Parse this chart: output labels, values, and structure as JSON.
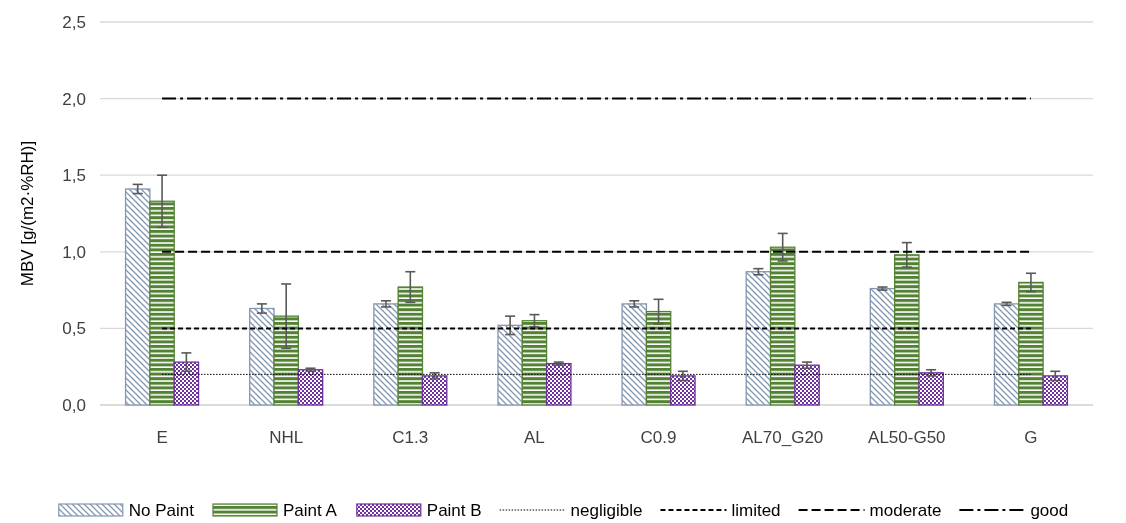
{
  "chart_data": {
    "type": "bar",
    "ylabel": "MBV [g/(m2·%RH)]",
    "categories": [
      "E",
      "NHL",
      "C1.3",
      "AL",
      "C0.9",
      "AL70_G20",
      "AL50-G50",
      "G"
    ],
    "series": [
      {
        "name": "No Paint",
        "color": "#8497b0",
        "values": [
          1.41,
          0.63,
          0.66,
          0.52,
          0.66,
          0.87,
          0.76,
          0.66
        ],
        "errors": [
          0.03,
          0.03,
          0.02,
          0.06,
          0.02,
          0.02,
          0.01,
          0.01
        ]
      },
      {
        "name": "Paint A",
        "color": "#548235",
        "values": [
          1.33,
          0.58,
          0.77,
          0.55,
          0.61,
          1.03,
          0.98,
          0.8
        ],
        "errors": [
          0.17,
          0.21,
          0.1,
          0.04,
          0.08,
          0.09,
          0.08,
          0.06
        ]
      },
      {
        "name": "Paint B",
        "color": "#7030a0",
        "values": [
          0.28,
          0.23,
          0.19,
          0.27,
          0.19,
          0.26,
          0.21,
          0.19
        ],
        "errors": [
          0.06,
          0.01,
          0.02,
          0.01,
          0.03,
          0.02,
          0.02,
          0.03
        ]
      },
      {
        "name": "negligible",
        "type": "line",
        "color": "#000000",
        "line_style": "dotted",
        "values": [
          0.2,
          0.2,
          0.2,
          0.2,
          0.2,
          0.2,
          0.2,
          0.2
        ]
      },
      {
        "name": "limited",
        "type": "line",
        "color": "#000000",
        "line_style": "dashed",
        "values": [
          0.5,
          0.5,
          0.5,
          0.5,
          0.5,
          0.5,
          0.5,
          0.5
        ]
      },
      {
        "name": "moderate",
        "type": "line",
        "color": "#000000",
        "line_style": "longdashed",
        "values": [
          1.0,
          1.0,
          1.0,
          1.0,
          1.0,
          1.0,
          1.0,
          1.0
        ]
      },
      {
        "name": "good",
        "type": "line",
        "color": "#000000",
        "line_style": "dashdot",
        "values": [
          2.0,
          2.0,
          2.0,
          2.0,
          2.0,
          2.0,
          2.0,
          2.0
        ]
      }
    ],
    "ylim": [
      0,
      2.5
    ],
    "yticks": [
      {
        "value": 0,
        "label": "0,0"
      },
      {
        "value": 0.5,
        "label": "0,5"
      },
      {
        "value": 1,
        "label": "1,0"
      },
      {
        "value": 1.5,
        "label": "1,5"
      },
      {
        "value": 2,
        "label": "2,0"
      },
      {
        "value": 2.5,
        "label": "2,5"
      }
    ],
    "grid": "y",
    "legend": "bottom"
  }
}
